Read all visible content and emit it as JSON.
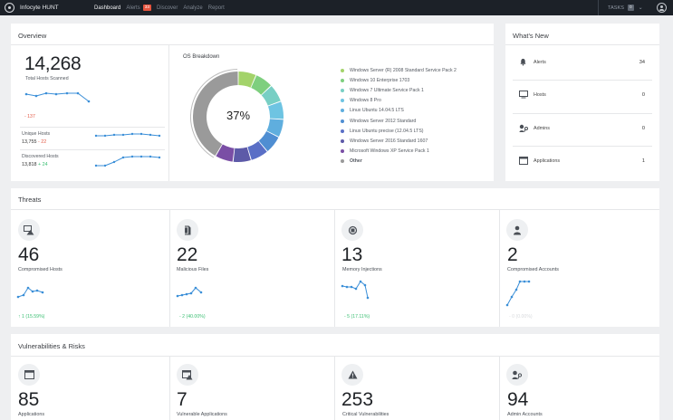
{
  "topbar": {
    "app_title": "Infocyte HUNT",
    "nav": [
      "Dashboard",
      "Alerts",
      "Discover",
      "Analyze",
      "Report"
    ],
    "alerts_badge": "33",
    "tasks_label": "TASKS",
    "tasks_count": "0"
  },
  "overview": {
    "title": "Overview",
    "total_hosts": "14,268",
    "total_hosts_label": "Total Hosts Scanned",
    "total_delta": "- 137",
    "unique_label": "Unique Hosts",
    "unique_value": "13,755",
    "unique_delta": "- 22",
    "discovered_label": "Discovered Hosts",
    "discovered_value": "13,818",
    "discovered_delta": "+ 24",
    "os_title": "OS Breakdown",
    "os_percent": "37%",
    "os_legend": [
      {
        "label": "Windows Server (R) 2008 Standard Service Pack 2",
        "color": "#a3d36a"
      },
      {
        "label": "Windows 10 Enterprise 1703",
        "color": "#7ecf7e"
      },
      {
        "label": "Windows 7 Ultimate Service Pack 1",
        "color": "#78cfc4"
      },
      {
        "label": "Windows 8 Pro",
        "color": "#6ec4e2"
      },
      {
        "label": "Linux Ubuntu 14.04.5 LTS",
        "color": "#5faede"
      },
      {
        "label": "Windows Server 2012 Standard",
        "color": "#4f8ed2"
      },
      {
        "label": "Linux Ubuntu precise (12.04.5 LTS)",
        "color": "#5a6fc6"
      },
      {
        "label": "Windows Server 2016 Standard 1607",
        "color": "#5d5aa8"
      },
      {
        "label": "Microsoft Windows XP Service Pack 1",
        "color": "#7a4ea5"
      },
      {
        "label": "Other",
        "color": "#9a9a9a"
      }
    ]
  },
  "whats_new": {
    "title": "What's New",
    "rows": [
      {
        "name": "Alerts",
        "value": "34",
        "icon": "bell-icon"
      },
      {
        "name": "Hosts",
        "value": "0",
        "icon": "monitor-icon"
      },
      {
        "name": "Admins",
        "value": "0",
        "icon": "admin-key-icon"
      },
      {
        "name": "Applications",
        "value": "1",
        "icon": "window-icon"
      }
    ]
  },
  "threats": {
    "title": "Threats",
    "tiles": [
      {
        "value": "46",
        "label": "Compromised Hosts",
        "delta": "↑ 1 (15.59%)",
        "icon": "compromised-host-icon",
        "delta_color": "#3bbf73"
      },
      {
        "value": "22",
        "label": "Malicious Files",
        "delta": "- 2 (40.00%)",
        "icon": "file-icon",
        "delta_color": "#3bbf73"
      },
      {
        "value": "13",
        "label": "Memory Injections",
        "delta": "- 5 (17.11%)",
        "icon": "chip-icon",
        "delta_color": "#3bbf73"
      },
      {
        "value": "2",
        "label": "Compromised Accounts",
        "delta": "- 0 (0.00%)",
        "icon": "user-icon",
        "delta_color": "#d8dadd"
      }
    ]
  },
  "vulns": {
    "title": "Vulnerabilities & Risks",
    "tiles": [
      {
        "value": "85",
        "label": "Applications",
        "icon": "window-icon"
      },
      {
        "value": "7",
        "label": "Vulnerable Applications",
        "icon": "vulnerable-window-icon"
      },
      {
        "value": "253",
        "label": "Critical Vulnerabilities",
        "icon": "warning-icon"
      },
      {
        "value": "94",
        "label": "Admin Accounts",
        "icon": "admin-key-icon"
      }
    ]
  }
}
